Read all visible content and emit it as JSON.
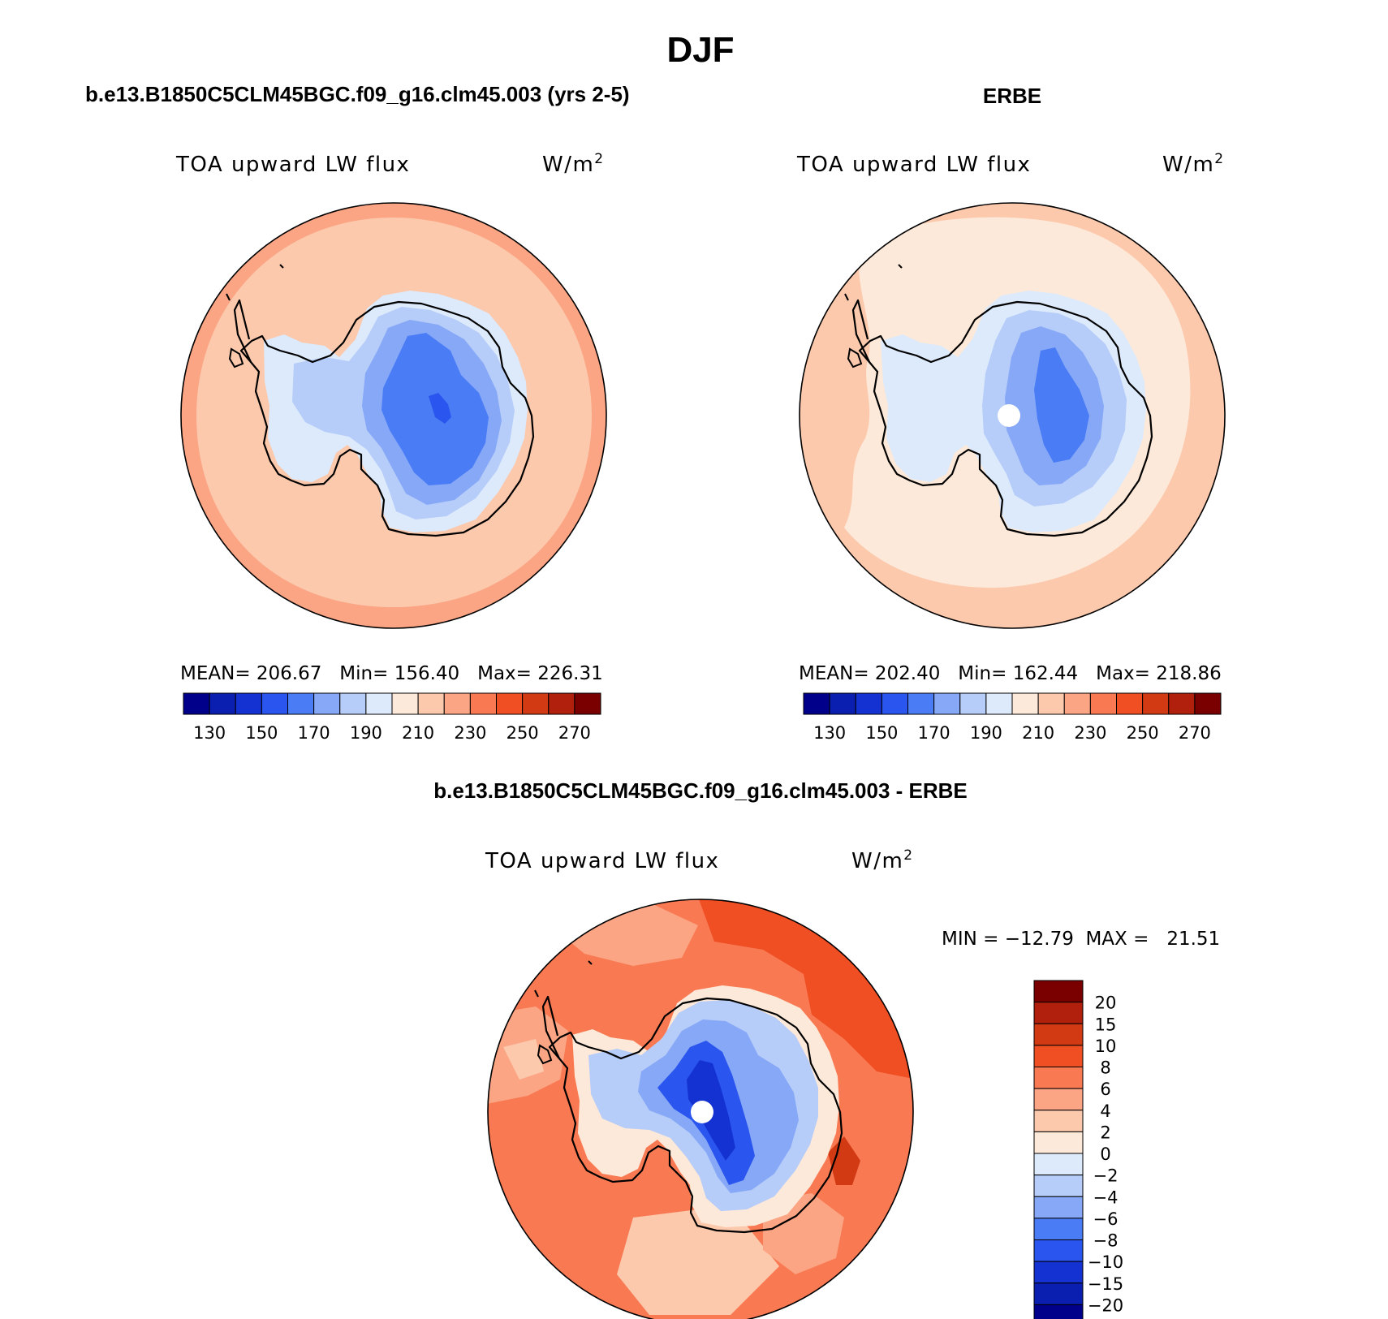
{
  "title": "DJF",
  "colors": {
    "c130": "#00008b",
    "c140": "#0a1eb0",
    "c150": "#1432d2",
    "c160": "#2a55ee",
    "c170": "#4a7cf5",
    "c180": "#86a8f7",
    "c190": "#b6ccf9",
    "c200": "#dceafb",
    "c210": "#fde9d9",
    "c220": "#fcc9ad",
    "c230": "#fba584",
    "c240": "#f87952",
    "c250": "#f04e23",
    "c260": "#d23a14",
    "c270": "#b0200c",
    "c280": "#7a0000"
  },
  "panels": [
    {
      "id": "model",
      "heading": "b.e13.B1850C5CLM45BGC.f09_g16.clm45.003 (yrs 2-5)",
      "variable": "TOA upward LW flux",
      "units_base": "W/m",
      "units_exp": "2",
      "stats": "MEAN= 206.67   Min= 156.40   Max= 226.31",
      "colorbar_ticks": [
        "130",
        "150",
        "170",
        "190",
        "210",
        "230",
        "250",
        "270"
      ]
    },
    {
      "id": "obs",
      "heading": "ERBE",
      "variable": "TOA upward LW flux",
      "units_base": "W/m",
      "units_exp": "2",
      "stats": "MEAN= 202.40   Min= 162.44   Max= 218.86",
      "colorbar_ticks": [
        "130",
        "150",
        "170",
        "190",
        "210",
        "230",
        "250",
        "270"
      ]
    }
  ],
  "diff": {
    "heading": "b.e13.B1850C5CLM45BGC.f09_g16.clm45.003 - ERBE",
    "variable": "TOA upward LW flux",
    "units_base": "W/m",
    "units_exp": "2",
    "stats": "MIN = −12.79  MAX =   21.51",
    "colorbar_ticks": [
      "20",
      "15",
      "10",
      "8",
      "6",
      "4",
      "2",
      "0",
      "−2",
      "−4",
      "−6",
      "−8",
      "−10",
      "−15",
      "−20"
    ],
    "colorbar_colors": [
      "#7a0000",
      "#b0200c",
      "#d23a14",
      "#f04e23",
      "#f87952",
      "#fba584",
      "#fcc9ad",
      "#fde9d9",
      "#dceafb",
      "#b6ccf9",
      "#86a8f7",
      "#4a7cf5",
      "#2a55ee",
      "#1432d2",
      "#0a1eb0",
      "#00008b"
    ]
  }
}
